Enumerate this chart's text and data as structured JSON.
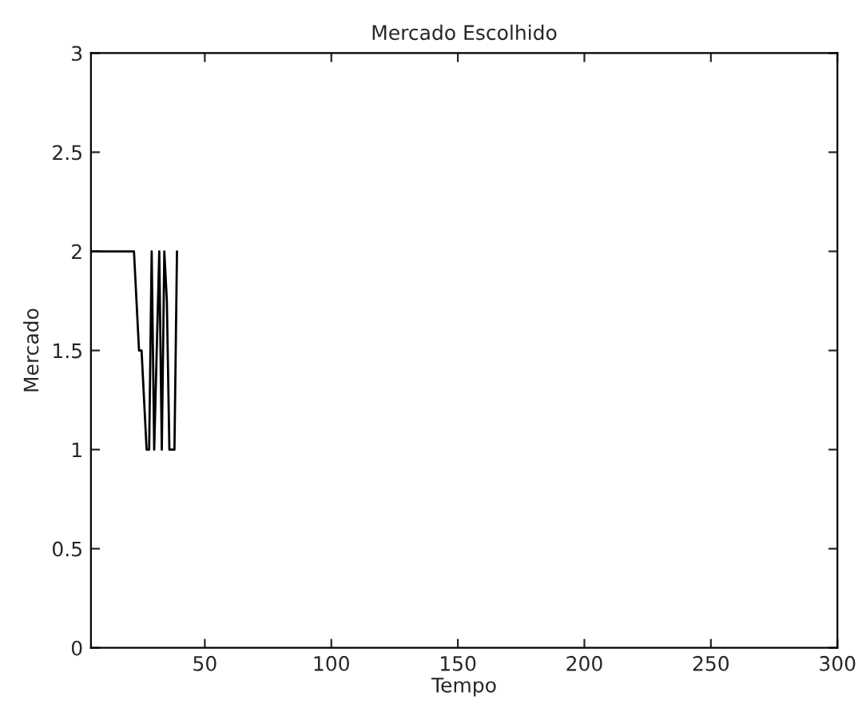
{
  "chart_data": {
    "type": "line",
    "title": "Mercado Escolhido",
    "xlabel": "Tempo",
    "ylabel": "Mercado",
    "series": [
      {
        "color": "#000000",
        "x": [
          5,
          10,
          15,
          20,
          22,
          23,
          24,
          25,
          26,
          27,
          28,
          29,
          30,
          31,
          32,
          33,
          34,
          35,
          36,
          37,
          38,
          39
        ],
        "values": [
          2,
          2,
          2,
          2,
          2,
          1.75,
          1.5,
          1.5,
          1.25,
          1,
          1,
          2,
          1,
          1.5,
          2,
          1,
          2,
          1.75,
          1,
          1,
          1,
          2
        ]
      }
    ],
    "xlim": [
      5,
      300
    ],
    "xticks": [
      50,
      100,
      150,
      200,
      250,
      300
    ],
    "ylim": [
      0,
      3
    ],
    "yticks": [
      0,
      0.5,
      1,
      1.5,
      2,
      2.5,
      3
    ],
    "grid": false,
    "legend": false
  }
}
